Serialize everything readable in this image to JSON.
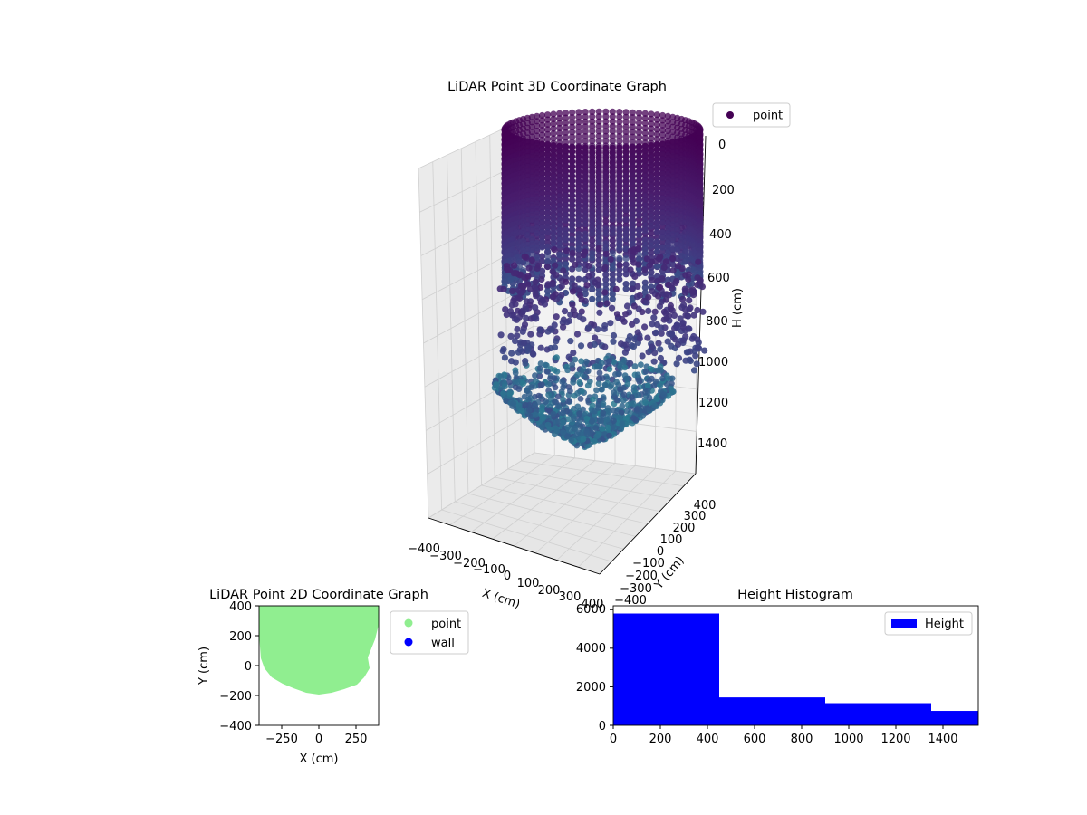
{
  "chart_data": [
    {
      "type": "scatter",
      "title": "LiDAR Point 3D Coordinate Graph",
      "xlabel": "X (cm)",
      "ylabel": "Y (cm)",
      "zlabel": "H (cm)",
      "xlim": [
        -400,
        400
      ],
      "ylim": [
        -400,
        400
      ],
      "zlim": [
        0,
        1550
      ],
      "z_inverted": true,
      "x_ticks": [
        "−400",
        "−300",
        "−200",
        "−100",
        "0",
        "100",
        "200",
        "300",
        "400"
      ],
      "y_ticks": [
        "−400",
        "−300",
        "−200",
        "−100",
        "0",
        "100",
        "200",
        "300",
        "400"
      ],
      "z_ticks": [
        "0",
        "200",
        "400",
        "600",
        "800",
        "1000",
        "1200",
        "1400"
      ],
      "legend": [
        "point"
      ],
      "legend_position": "upper-right outside",
      "colormap": "viridis",
      "grid": true
    },
    {
      "type": "scatter",
      "title": "LiDAR Point 2D Coordinate Graph",
      "xlabel": "X (cm)",
      "ylabel": "Y (cm)",
      "xlim": [
        -400,
        400
      ],
      "ylim": [
        -400,
        400
      ],
      "x_ticks": [
        "−250",
        "0",
        "250"
      ],
      "y_ticks": [
        "400",
        "200",
        "0",
        "−200",
        "−400"
      ],
      "series": [
        {
          "name": "point",
          "color": "#90ee90"
        },
        {
          "name": "wall",
          "color": "#0000ff"
        }
      ],
      "legend_position": "upper-right outside"
    },
    {
      "type": "bar",
      "title": "Height Histogram",
      "xlim": [
        0,
        1550
      ],
      "ylim": [
        0,
        6200
      ],
      "x_ticks": [
        "0",
        "200",
        "400",
        "600",
        "800",
        "1000",
        "1200",
        "1400"
      ],
      "y_ticks": [
        "6000",
        "4000",
        "2000",
        "0"
      ],
      "bins": [
        {
          "x0": 0,
          "x1": 450,
          "value": 5800
        },
        {
          "x0": 450,
          "x1": 900,
          "value": 1450
        },
        {
          "x0": 900,
          "x1": 1350,
          "value": 1150
        },
        {
          "x0": 1350,
          "x1": 1550,
          "value": 750
        }
      ],
      "series": [
        {
          "name": "Height",
          "color": "#0000ff"
        }
      ],
      "legend_position": "upper-right"
    }
  ]
}
